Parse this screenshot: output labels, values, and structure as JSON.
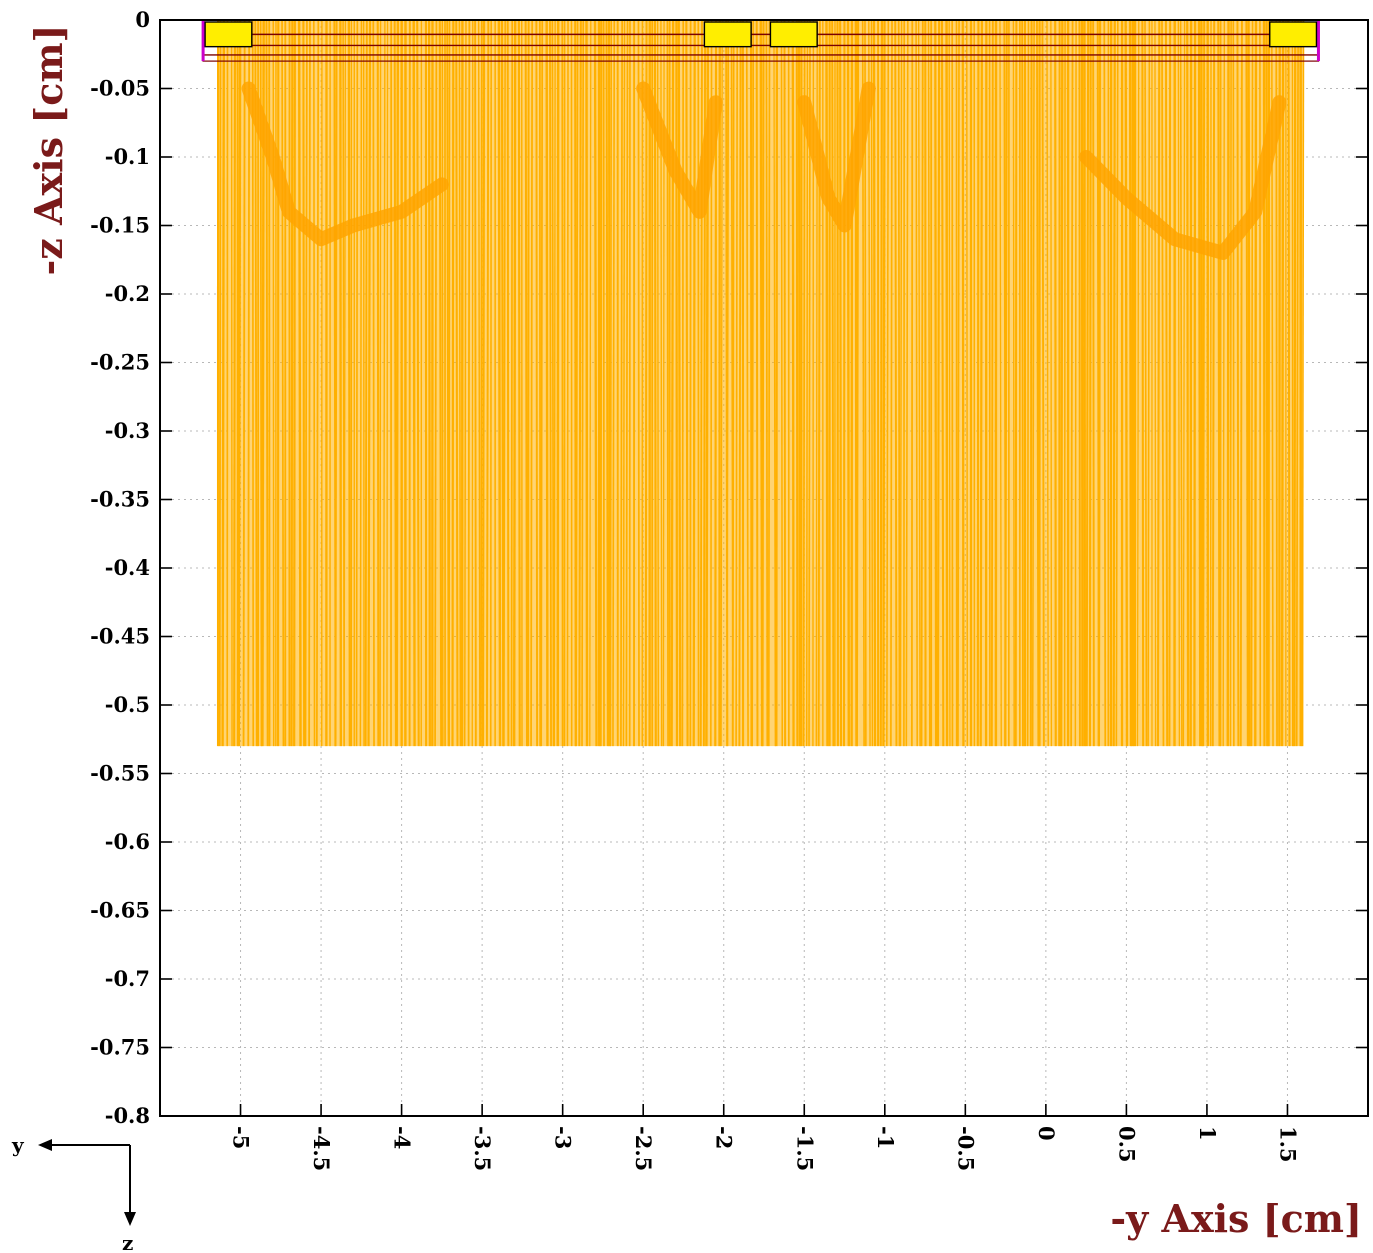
{
  "chart_data": {
    "type": "scatter",
    "title": "",
    "xlabel": "-y Axis [cm]",
    "ylabel": "-z Axis [cm]",
    "xlim": [
      -5.5,
      2.0
    ],
    "ylim": [
      -0.8,
      0.0
    ],
    "x_ticks": [
      -5,
      -4.5,
      -4,
      -3.5,
      -3,
      -2.5,
      -2,
      -1.5,
      -1,
      -0.5,
      0,
      0.5,
      1,
      1.5
    ],
    "x_tick_labels": [
      "-5",
      "-4.5",
      "-4",
      "-3.5",
      "-3",
      "-2.5",
      "-2",
      "-1.5",
      "-1",
      "-0.5",
      "0",
      "0.5",
      "1",
      "1.5"
    ],
    "y_ticks": [
      0,
      -0.05,
      -0.1,
      -0.15,
      -0.2,
      -0.25,
      -0.3,
      -0.35,
      -0.4,
      -0.45,
      -0.5,
      -0.55,
      -0.6,
      -0.65,
      -0.7,
      -0.75,
      -0.8
    ],
    "y_tick_labels": [
      "0",
      "-0.05",
      "-0.1",
      "-0.15",
      "-0.2",
      "-0.25",
      "-0.3",
      "-0.35",
      "-0.4",
      "-0.45",
      "-0.5",
      "-0.55",
      "-0.6",
      "-0.65",
      "-0.7",
      "-0.75",
      "-0.8"
    ],
    "grid": true,
    "series": [
      {
        "color": "#ffb000",
        "region_x": [
          -5.14,
          1.6
        ],
        "region_y": [
          -0.53,
          0.0
        ],
        "envelope_lows": [
          {
            "x": [
              -4.95,
              -4.8,
              -4.7,
              -4.5,
              -4.3,
              -4.0,
              -3.75
            ],
            "y": [
              -0.05,
              -0.1,
              -0.14,
              -0.16,
              -0.15,
              -0.14,
              -0.12
            ]
          },
          {
            "x": [
              -2.5,
              -2.3,
              -2.15,
              -2.05
            ],
            "y": [
              -0.05,
              -0.11,
              -0.14,
              -0.06
            ]
          },
          {
            "x": [
              -1.5,
              -1.35,
              -1.25,
              -1.1
            ],
            "y": [
              -0.06,
              -0.13,
              -0.15,
              -0.05
            ]
          },
          {
            "x": [
              0.25,
              0.5,
              0.8,
              1.1,
              1.3,
              1.45
            ],
            "y": [
              -0.1,
              -0.13,
              -0.16,
              -0.17,
              -0.14,
              -0.06
            ]
          }
        ]
      }
    ],
    "detector": {
      "pads": [
        {
          "x": [
            -5.22,
            -4.93
          ]
        },
        {
          "x": [
            -2.12,
            -1.83
          ]
        },
        {
          "x": [
            -1.71,
            -1.42
          ]
        },
        {
          "x": [
            1.39,
            1.68
          ]
        }
      ],
      "layer_y": [
        0.0,
        -0.03
      ],
      "pad_color": "#ffee00",
      "frame_color": "#a00060",
      "line_color": "#7a0000",
      "edge_color": "#cc00cc"
    }
  },
  "axes_glyph": {
    "horizontal": "y",
    "vertical": "z"
  }
}
